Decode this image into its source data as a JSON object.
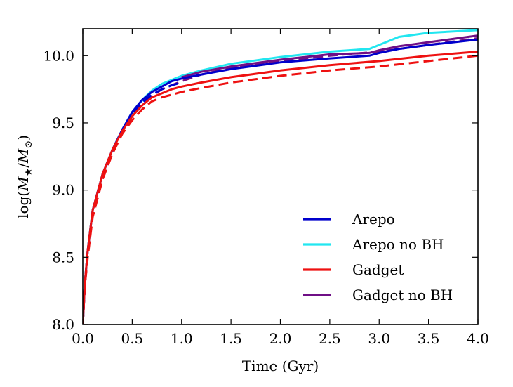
{
  "chart_data": {
    "type": "line",
    "title": "",
    "xlabel": "Time (Gyr)",
    "ylabel": "log(M★/M⊙)",
    "xlim": [
      0.0,
      4.0
    ],
    "ylim": [
      8.0,
      10.2
    ],
    "xticks": [
      "0.0",
      "0.5",
      "1.0",
      "1.5",
      "2.0",
      "2.5",
      "3.0",
      "3.5",
      "4.0"
    ],
    "yticks": [
      "8.0",
      "8.5",
      "9.0",
      "9.5",
      "10.0"
    ],
    "grid": false,
    "legend_position": "lower-right",
    "legend": [
      {
        "label": "Arepo",
        "color": "#0000cc"
      },
      {
        "label": "Arepo no BH",
        "color": "#22e6f0"
      },
      {
        "label": "Gadget",
        "color": "#ee1111"
      },
      {
        "label": "Gadget no BH",
        "color": "#6f0f86"
      }
    ],
    "series": [
      {
        "name": "Arepo no BH",
        "style": "solid",
        "color": "#22e6f0",
        "x": [
          0.0,
          0.02,
          0.05,
          0.1,
          0.2,
          0.3,
          0.4,
          0.5,
          0.6,
          0.7,
          0.8,
          0.9,
          1.0,
          1.2,
          1.5,
          2.0,
          2.5,
          2.9,
          3.0,
          3.2,
          3.5,
          4.0
        ],
        "y": [
          8.0,
          8.3,
          8.55,
          8.85,
          9.12,
          9.3,
          9.45,
          9.58,
          9.67,
          9.74,
          9.79,
          9.82,
          9.85,
          9.89,
          9.94,
          9.99,
          10.03,
          10.05,
          10.08,
          10.14,
          10.17,
          10.19
        ]
      },
      {
        "name": "Arepo no BH (dashed)",
        "style": "dashed",
        "color": "#22e6f0",
        "x": [
          0.0,
          0.02,
          0.05,
          0.1,
          0.2,
          0.3,
          0.4,
          0.5,
          0.6,
          0.7,
          0.8,
          0.9,
          1.0
        ],
        "y": [
          8.0,
          8.3,
          8.55,
          8.85,
          9.12,
          9.3,
          9.45,
          9.57,
          9.66,
          9.73,
          9.78,
          9.81,
          9.83
        ]
      },
      {
        "name": "Gadget no BH",
        "style": "solid",
        "color": "#6f0f86",
        "x": [
          1.0,
          1.2,
          1.5,
          2.0,
          2.5,
          2.9,
          3.0,
          3.2,
          3.5,
          3.8,
          4.0
        ],
        "y": [
          9.84,
          9.88,
          9.92,
          9.97,
          10.01,
          10.02,
          10.04,
          10.07,
          10.1,
          10.13,
          10.15
        ]
      },
      {
        "name": "Gadget no BH (dashed)",
        "style": "dashed",
        "color": "#6f0f86",
        "x": [
          0.0,
          0.02,
          0.05,
          0.1,
          0.2,
          0.3,
          0.4,
          0.5,
          0.6,
          0.7,
          0.8,
          0.9,
          1.0,
          1.2,
          1.5,
          2.0,
          2.5,
          3.0,
          3.5,
          3.8,
          4.0
        ],
        "y": [
          8.0,
          8.28,
          8.52,
          8.82,
          9.1,
          9.28,
          9.43,
          9.55,
          9.64,
          9.7,
          9.75,
          9.78,
          9.81,
          9.86,
          9.91,
          9.96,
          10.0,
          10.03,
          10.08,
          10.11,
          10.13
        ]
      },
      {
        "name": "Arepo",
        "style": "solid",
        "color": "#0000cc",
        "x": [
          0.0,
          0.02,
          0.05,
          0.1,
          0.2,
          0.3,
          0.4,
          0.5,
          0.6,
          0.7,
          0.8,
          0.9,
          1.0,
          1.2,
          1.5,
          2.0,
          2.5,
          2.9,
          3.0,
          3.2,
          3.5,
          4.0
        ],
        "y": [
          8.0,
          8.3,
          8.55,
          8.85,
          9.12,
          9.3,
          9.45,
          9.58,
          9.67,
          9.73,
          9.77,
          9.81,
          9.83,
          9.86,
          9.9,
          9.95,
          9.98,
          10.0,
          10.02,
          10.05,
          10.08,
          10.12
        ]
      },
      {
        "name": "Arepo (dashed)",
        "style": "dashed",
        "color": "#0000cc",
        "x": [
          0.0,
          0.02,
          0.05,
          0.1,
          0.2,
          0.3,
          0.4,
          0.5,
          0.6,
          0.7,
          0.8,
          0.9,
          1.0
        ],
        "y": [
          8.0,
          8.29,
          8.54,
          8.84,
          9.11,
          9.29,
          9.44,
          9.56,
          9.65,
          9.71,
          9.75,
          9.78,
          9.8
        ]
      },
      {
        "name": "Gadget",
        "style": "solid",
        "color": "#ee1111",
        "x": [
          0.0,
          0.02,
          0.05,
          0.1,
          0.2,
          0.3,
          0.4,
          0.5,
          0.6,
          0.7,
          0.8,
          0.9,
          1.0,
          1.2,
          1.5,
          2.0,
          2.5,
          3.0,
          3.5,
          4.0
        ],
        "y": [
          8.0,
          8.3,
          8.55,
          8.85,
          9.12,
          9.3,
          9.44,
          9.55,
          9.63,
          9.69,
          9.72,
          9.75,
          9.77,
          9.8,
          9.84,
          9.89,
          9.93,
          9.96,
          10.0,
          10.03
        ]
      },
      {
        "name": "Gadget (dashed)",
        "style": "dashed",
        "color": "#ee1111",
        "x": [
          0.0,
          0.02,
          0.05,
          0.1,
          0.2,
          0.3,
          0.4,
          0.5,
          0.6,
          0.7,
          0.8,
          0.9,
          1.0,
          1.2,
          1.5,
          2.0,
          2.5,
          3.0,
          3.5,
          4.0
        ],
        "y": [
          8.0,
          8.28,
          8.5,
          8.8,
          9.08,
          9.27,
          9.42,
          9.52,
          9.6,
          9.66,
          9.69,
          9.71,
          9.73,
          9.76,
          9.8,
          9.85,
          9.89,
          9.92,
          9.96,
          10.0
        ]
      }
    ]
  }
}
